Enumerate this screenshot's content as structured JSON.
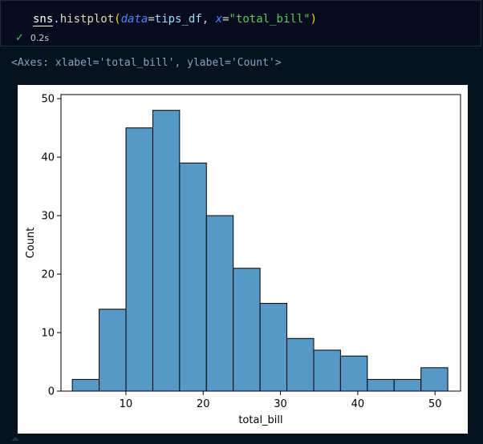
{
  "cell": {
    "code": {
      "object": "sns",
      "dot": ".",
      "function": "histplot",
      "open_paren": "(",
      "kw1": "data",
      "eq1": "=",
      "value1": "tips_df",
      "comma": ", ",
      "kw2": "x",
      "eq2": "=",
      "value2": "\"total_bill\"",
      "close_paren": ")"
    },
    "status": {
      "icon": "check-icon",
      "time": "0.2s"
    }
  },
  "output": {
    "repr": "<Axes: xlabel='total_bill', ylabel='Count'>"
  },
  "chart_data": {
    "type": "bar",
    "title": "",
    "xlabel": "total_bill",
    "ylabel": "Count",
    "xlim": [
      1.6,
      53.3
    ],
    "ylim": [
      0,
      50.7
    ],
    "bin_edges": [
      3.07,
      6.54,
      10.01,
      13.48,
      16.95,
      20.42,
      23.89,
      27.36,
      30.83,
      34.3,
      37.77,
      41.24,
      44.71,
      48.18,
      51.65
    ],
    "values": [
      2,
      14,
      45,
      48,
      39,
      30,
      21,
      15,
      9,
      7,
      6,
      2,
      2,
      4
    ],
    "xticks": [
      10,
      20,
      30,
      40,
      50
    ],
    "yticks": [
      0,
      10,
      20,
      30,
      40,
      50
    ],
    "bar_color": "#5698c6",
    "edge_color": "#000000",
    "grid": false
  }
}
